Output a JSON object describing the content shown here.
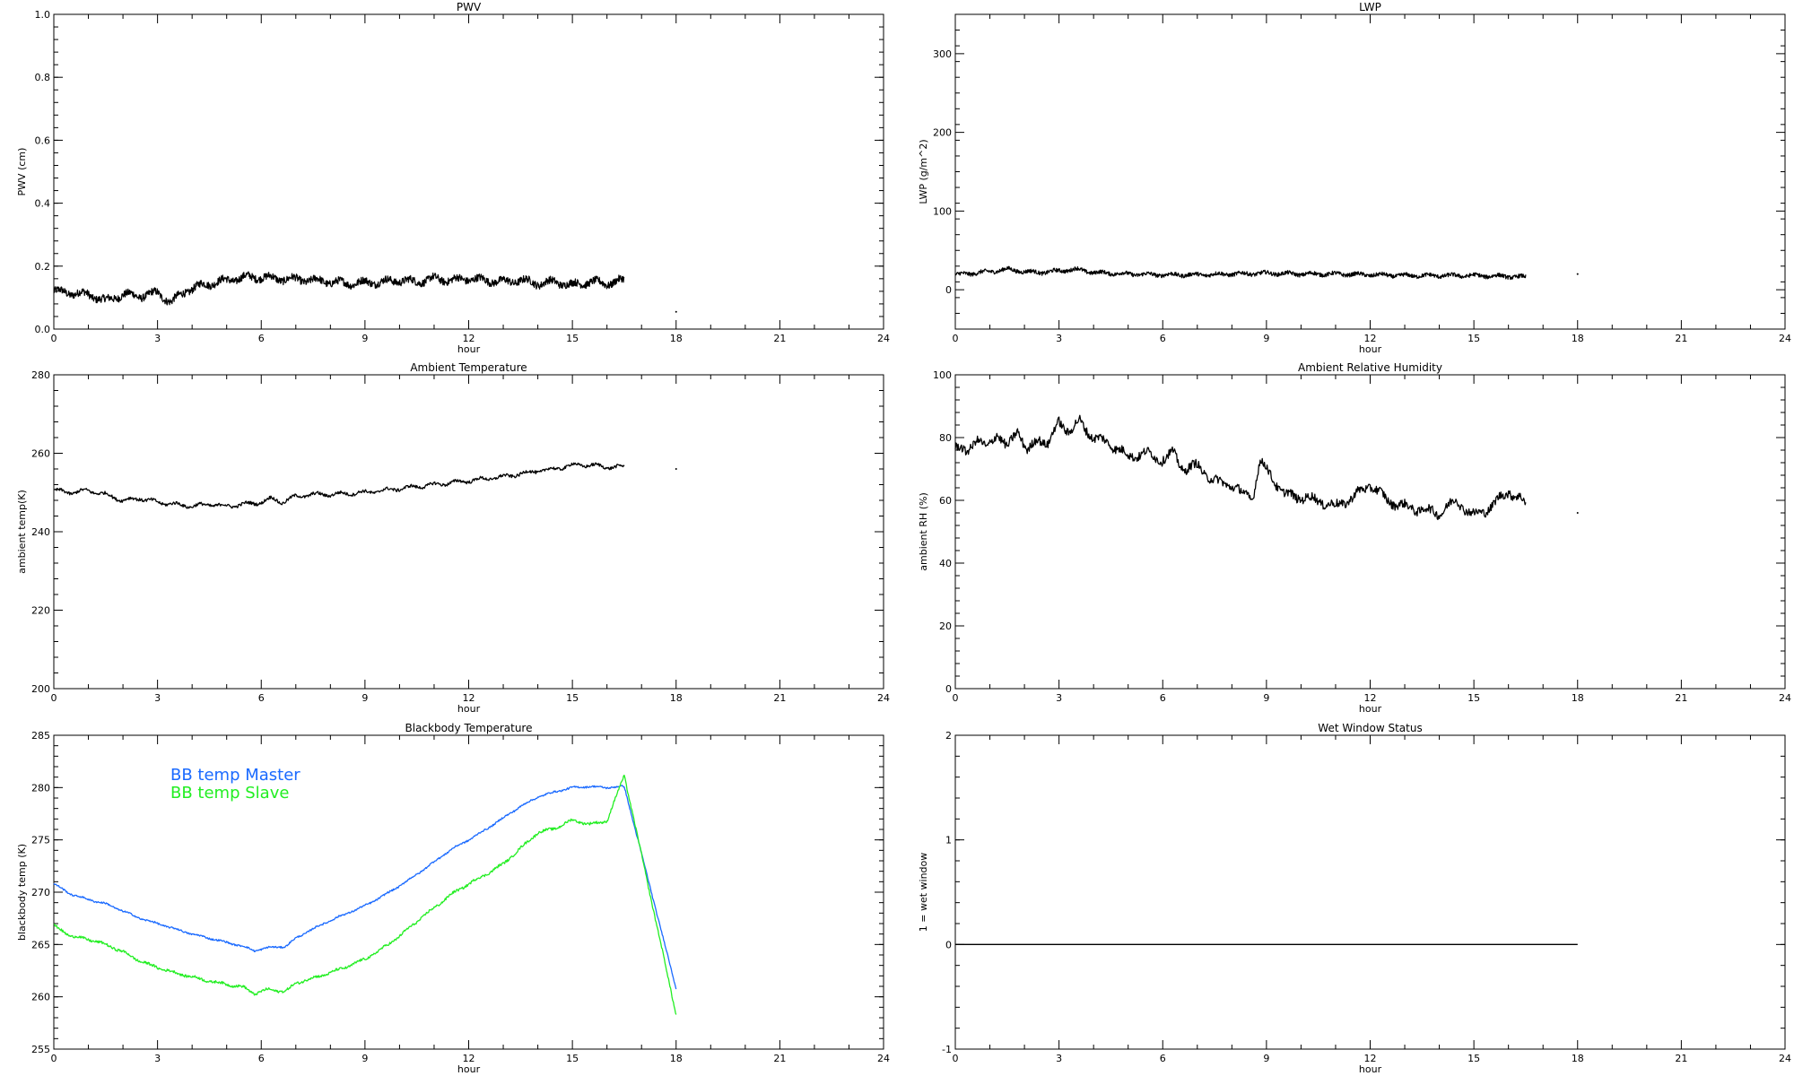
{
  "chart_data": [
    {
      "type": "line",
      "title": "PWV",
      "xlabel": "hour",
      "ylabel": "PWV (cm)",
      "xlim": [
        0,
        24
      ],
      "ylim": [
        0,
        1
      ],
      "xticks": [
        "0",
        "3",
        "6",
        "9",
        "12",
        "15",
        "18",
        "21",
        "24"
      ],
      "yticks": [
        "0.0",
        "0.2",
        "0.4",
        "0.6",
        "0.8",
        "1.0"
      ],
      "series": [
        {
          "color": "#000000",
          "style": "noisy",
          "x": [
            0,
            0.5,
            1.0,
            1.5,
            2.0,
            2.5,
            3.0,
            3.4,
            3.8,
            4.3,
            5.0,
            5.6,
            6.0,
            6.5,
            7.0,
            7.5,
            8.0,
            8.5,
            9.0,
            9.5,
            10.0,
            10.5,
            11.0,
            11.5,
            12.0,
            12.5,
            13.0,
            13.5,
            14.0,
            14.5,
            15.0,
            15.5,
            16.0,
            16.5
          ],
          "y": [
            0.12,
            0.115,
            0.11,
            0.09,
            0.11,
            0.105,
            0.115,
            0.085,
            0.12,
            0.14,
            0.155,
            0.165,
            0.165,
            0.16,
            0.158,
            0.155,
            0.15,
            0.145,
            0.148,
            0.15,
            0.155,
            0.15,
            0.16,
            0.155,
            0.16,
            0.155,
            0.15,
            0.155,
            0.145,
            0.15,
            0.14,
            0.15,
            0.145,
            0.155
          ],
          "noise": 0.012,
          "amp": 0.008
        }
      ],
      "dots": [
        {
          "x": 18.0,
          "y": 0.055
        }
      ]
    },
    {
      "type": "line",
      "title": "LWP",
      "xlabel": "hour",
      "ylabel": "LWP (g/m^2)",
      "xlim": [
        0,
        24
      ],
      "ylim": [
        -50,
        350
      ],
      "xticks": [
        "0",
        "3",
        "6",
        "9",
        "12",
        "15",
        "18",
        "21",
        "24"
      ],
      "yticks": [
        "0",
        "100",
        "200",
        "300"
      ],
      "ytick_values": [
        0,
        100,
        200,
        300
      ],
      "series": [
        {
          "color": "#000000",
          "style": "noisy",
          "x": [
            0,
            0.5,
            1.0,
            1.5,
            2.0,
            2.5,
            3.0,
            3.5,
            4.0,
            5.0,
            6.0,
            7.0,
            8.0,
            9.0,
            10.0,
            11.0,
            12.0,
            13.0,
            14.0,
            15.0,
            16.0,
            16.5
          ],
          "y": [
            19,
            21,
            23,
            26,
            23,
            22,
            24,
            26,
            22,
            20,
            19,
            19,
            20,
            21,
            20,
            20,
            19,
            18,
            18,
            18,
            17,
            16
          ],
          "noise": 2.5,
          "amp": 1.5
        }
      ],
      "dots": [
        {
          "x": 18.0,
          "y": 20
        }
      ]
    },
    {
      "type": "line",
      "title": "Ambient Temperature",
      "xlabel": "hour",
      "ylabel": "ambient temp(K)",
      "xlim": [
        0,
        24
      ],
      "ylim": [
        200,
        280
      ],
      "xticks": [
        "0",
        "3",
        "6",
        "9",
        "12",
        "15",
        "18",
        "21",
        "24"
      ],
      "yticks": [
        "200",
        "220",
        "240",
        "260",
        "280"
      ],
      "ytick_values": [
        200,
        220,
        240,
        260,
        280
      ],
      "series": [
        {
          "color": "#000000",
          "style": "smooth",
          "x": [
            0,
            0.5,
            1.0,
            1.5,
            2.0,
            2.5,
            3.0,
            3.5,
            4.0,
            4.5,
            5.0,
            5.5,
            6.0,
            6.3,
            6.6,
            7.0,
            7.5,
            8.0,
            9.0,
            10.0,
            11.0,
            12.0,
            13.0,
            14.0,
            14.5,
            15.0,
            15.5,
            16.0,
            16.5
          ],
          "y": [
            250.5,
            250,
            250.5,
            249.5,
            248,
            248.5,
            247.5,
            247,
            246.5,
            247,
            246.5,
            247,
            247.5,
            248.5,
            247.5,
            249,
            249.5,
            249.5,
            250,
            251,
            252,
            253,
            254,
            255.5,
            256,
            257,
            257,
            256.5,
            256.5
          ],
          "noise": 0.4,
          "amp": 0.4
        }
      ],
      "dots": [
        {
          "x": 18.0,
          "y": 256
        }
      ]
    },
    {
      "type": "line",
      "title": "Ambient Relative Humidity",
      "xlabel": "hour",
      "ylabel": "ambient RH (%)",
      "xlim": [
        0,
        24
      ],
      "ylim": [
        0,
        100
      ],
      "xticks": [
        "0",
        "3",
        "6",
        "9",
        "12",
        "15",
        "18",
        "21",
        "24"
      ],
      "yticks": [
        "0",
        "20",
        "40",
        "60",
        "80",
        "100"
      ],
      "ytick_values": [
        0,
        20,
        40,
        60,
        80,
        100
      ],
      "series": [
        {
          "color": "#000000",
          "style": "smooth",
          "x": [
            0,
            0.3,
            0.6,
            0.9,
            1.2,
            1.5,
            1.8,
            2.1,
            2.4,
            2.7,
            3.0,
            3.3,
            3.6,
            4.0,
            4.5,
            5.0,
            5.5,
            6.0,
            6.3,
            6.6,
            7.0,
            7.5,
            8.0,
            8.3,
            8.6,
            8.8,
            9.0,
            9.5,
            10.0,
            10.5,
            11.0,
            11.5,
            12.0,
            12.5,
            13.0,
            13.5,
            14.0,
            14.5,
            15.0,
            15.5,
            16.0,
            16.5
          ],
          "y": [
            77,
            75,
            80,
            76,
            82,
            76,
            83,
            75,
            80,
            78,
            85,
            82,
            85,
            80,
            78,
            74,
            75,
            73,
            75,
            70,
            71,
            66,
            65,
            62,
            61,
            72,
            70,
            62,
            61,
            60,
            58,
            61,
            65,
            60,
            58,
            57,
            56,
            60,
            55,
            58,
            63,
            59
          ],
          "noise": 1.4,
          "amp": 1.0
        }
      ],
      "dots": [
        {
          "x": 18.0,
          "y": 56
        }
      ]
    },
    {
      "type": "line",
      "title": "Blackbody Temperature",
      "xlabel": "hour",
      "ylabel": "blackbody temp (K)",
      "xlim": [
        0,
        24
      ],
      "ylim": [
        255,
        285
      ],
      "xticks": [
        "0",
        "3",
        "6",
        "9",
        "12",
        "15",
        "18",
        "21",
        "24"
      ],
      "yticks": [
        "255",
        "260",
        "265",
        "270",
        "275",
        "280",
        "285"
      ],
      "ytick_values": [
        255,
        260,
        265,
        270,
        275,
        280,
        285
      ],
      "legend": [
        "BB temp Master",
        "BB temp Slave"
      ],
      "series": [
        {
          "name": "BB temp Master",
          "color": "#1a6aff",
          "style": "smooth",
          "x": [
            0,
            0.5,
            1.0,
            1.5,
            2.0,
            2.5,
            3.0,
            3.5,
            4.0,
            4.5,
            5.0,
            5.5,
            5.8,
            6.2,
            6.7,
            7.0,
            7.5,
            8.0,
            8.5,
            9.0,
            9.5,
            10.0,
            10.5,
            11.0,
            11.5,
            12.0,
            12.5,
            13.0,
            13.5,
            14.0,
            14.5,
            15.0,
            15.5,
            16.0,
            16.5,
            18.0
          ],
          "y": [
            270.8,
            269.8,
            269.3,
            268.9,
            268.2,
            267.5,
            267.0,
            266.5,
            266.0,
            265.6,
            265.2,
            264.8,
            264.4,
            264.7,
            264.8,
            265.6,
            266.5,
            267.3,
            268.0,
            268.7,
            269.6,
            270.6,
            271.7,
            272.9,
            274.1,
            275.0,
            276.0,
            277.1,
            278.2,
            279.1,
            279.6,
            280.0,
            280.1,
            280.0,
            280.1,
            260.8
          ],
          "noise": 0.08,
          "amp": 0.05
        },
        {
          "name": "BB temp Slave",
          "color": "#22ee22",
          "style": "smooth",
          "x": [
            0,
            0.5,
            1.0,
            1.5,
            2.0,
            2.5,
            3.0,
            3.5,
            4.0,
            4.5,
            5.0,
            5.5,
            5.8,
            6.2,
            6.7,
            7.0,
            7.5,
            8.0,
            8.5,
            9.0,
            9.5,
            10.0,
            10.5,
            11.0,
            11.5,
            12.0,
            12.5,
            13.0,
            13.5,
            14.0,
            14.5,
            15.0,
            15.5,
            16.0,
            16.5,
            18.0
          ],
          "y": [
            266.8,
            265.8,
            265.5,
            265.0,
            264.3,
            263.4,
            262.8,
            262.3,
            261.9,
            261.5,
            261.2,
            260.9,
            260.3,
            260.7,
            260.5,
            261.3,
            261.8,
            262.3,
            262.9,
            263.6,
            264.6,
            265.8,
            267.2,
            268.5,
            269.8,
            270.8,
            271.7,
            272.7,
            274.2,
            275.7,
            276.1,
            276.9,
            276.5,
            276.8,
            281.2,
            258.3
          ],
          "noise": 0.12,
          "amp": 0.08
        }
      ],
      "dots": []
    },
    {
      "type": "line",
      "title": "Wet Window Status",
      "xlabel": "hour",
      "ylabel": "1 = wet window",
      "xlim": [
        0,
        24
      ],
      "ylim": [
        -1,
        2
      ],
      "xticks": [
        "0",
        "3",
        "6",
        "9",
        "12",
        "15",
        "18",
        "21",
        "24"
      ],
      "yticks": [
        "-1",
        "0",
        "1",
        "2"
      ],
      "ytick_values": [
        -1,
        0,
        1,
        2
      ],
      "series": [
        {
          "color": "#000000",
          "style": "flat",
          "x": [
            0,
            18
          ],
          "y": [
            0,
            0
          ],
          "noise": 0,
          "amp": 0
        }
      ],
      "dots": []
    }
  ]
}
